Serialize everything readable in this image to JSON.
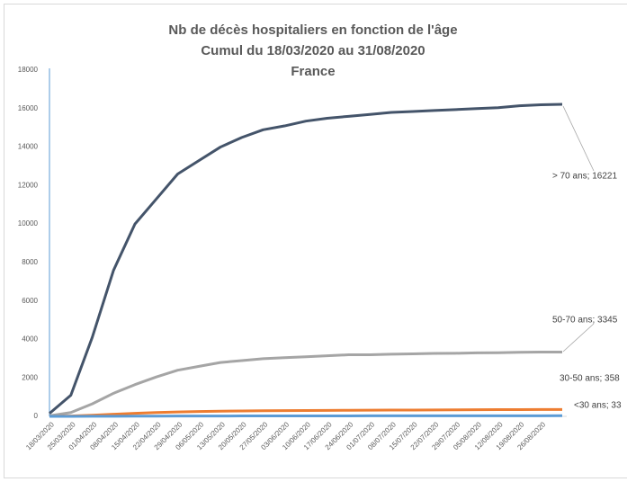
{
  "chart_data": {
    "type": "line",
    "title": [
      "Nb de  décès hospitaliers en fonction de l'âge",
      "Cumul du 18/03/2020 au 31/08/2020",
      "France"
    ],
    "categories": [
      "18/03/2020",
      "25/03/2020",
      "01/04/2020",
      "08/04/2020",
      "15/04/2020",
      "22/04/2020",
      "29/04/2020",
      "06/05/2020",
      "13/05/2020",
      "20/05/2020",
      "27/05/2020",
      "03/06/2020",
      "10/06/2020",
      "17/06/2020",
      "24/06/2020",
      "01/07/2020",
      "08/07/2020",
      "15/07/2020",
      "22/07/2020",
      "29/07/2020",
      "05/08/2020",
      "12/08/2020",
      "19/08/2020",
      "26/08/2020",
      null
    ],
    "series": [
      {
        "name": "> 70 ans",
        "color": "#44546a",
        "values": [
          150,
          1100,
          4100,
          7600,
          10000,
          11300,
          12600,
          13300,
          14000,
          14500,
          14900,
          15100,
          15350,
          15500,
          15600,
          15700,
          15800,
          15850,
          15900,
          15950,
          16000,
          16050,
          16150,
          16200,
          16221
        ],
        "value_labels": [
          null,
          null,
          null,
          null,
          null,
          null,
          null,
          null,
          null,
          null,
          null,
          null,
          null,
          null,
          null,
          null,
          null,
          null,
          null,
          null,
          null,
          null,
          null,
          null,
          "> 70 ans; 16221"
        ]
      },
      {
        "name": "50-70 ans",
        "color": "#a5a5a5",
        "values": [
          30,
          200,
          650,
          1200,
          1650,
          2050,
          2400,
          2600,
          2800,
          2900,
          3000,
          3050,
          3100,
          3150,
          3200,
          3200,
          3230,
          3250,
          3270,
          3280,
          3300,
          3310,
          3330,
          3340,
          3345
        ],
        "value_labels": [
          null,
          null,
          null,
          null,
          null,
          null,
          null,
          null,
          null,
          null,
          null,
          null,
          null,
          null,
          null,
          null,
          null,
          null,
          null,
          null,
          null,
          null,
          null,
          null,
          "50-70 ans; 3345"
        ]
      },
      {
        "name": "30-50 ans",
        "color": "#ed7d31",
        "values": [
          2,
          20,
          60,
          110,
          160,
          200,
          230,
          250,
          270,
          280,
          290,
          300,
          305,
          310,
          315,
          320,
          325,
          330,
          335,
          340,
          345,
          350,
          352,
          355,
          358
        ],
        "value_labels": [
          null,
          null,
          null,
          null,
          null,
          null,
          null,
          null,
          null,
          null,
          null,
          null,
          null,
          null,
          null,
          null,
          null,
          null,
          null,
          null,
          null,
          null,
          null,
          null,
          "30-50 ans; 358"
        ]
      },
      {
        "name": "<30 ans",
        "color": "#5b9bd5",
        "values": [
          0,
          1,
          3,
          6,
          9,
          12,
          15,
          17,
          19,
          21,
          22,
          23,
          24,
          25,
          26,
          27,
          28,
          29,
          29,
          30,
          31,
          31,
          32,
          32,
          33
        ],
        "value_labels": [
          null,
          null,
          null,
          null,
          null,
          null,
          null,
          null,
          null,
          null,
          null,
          null,
          null,
          null,
          null,
          null,
          null,
          null,
          null,
          null,
          null,
          null,
          null,
          null,
          "<30 ans; 33"
        ]
      }
    ],
    "ylim": [
      0,
      18000
    ],
    "yticks": [
      0,
      2000,
      4000,
      6000,
      8000,
      10000,
      12000,
      14000,
      16000,
      18000
    ],
    "grid": false
  }
}
